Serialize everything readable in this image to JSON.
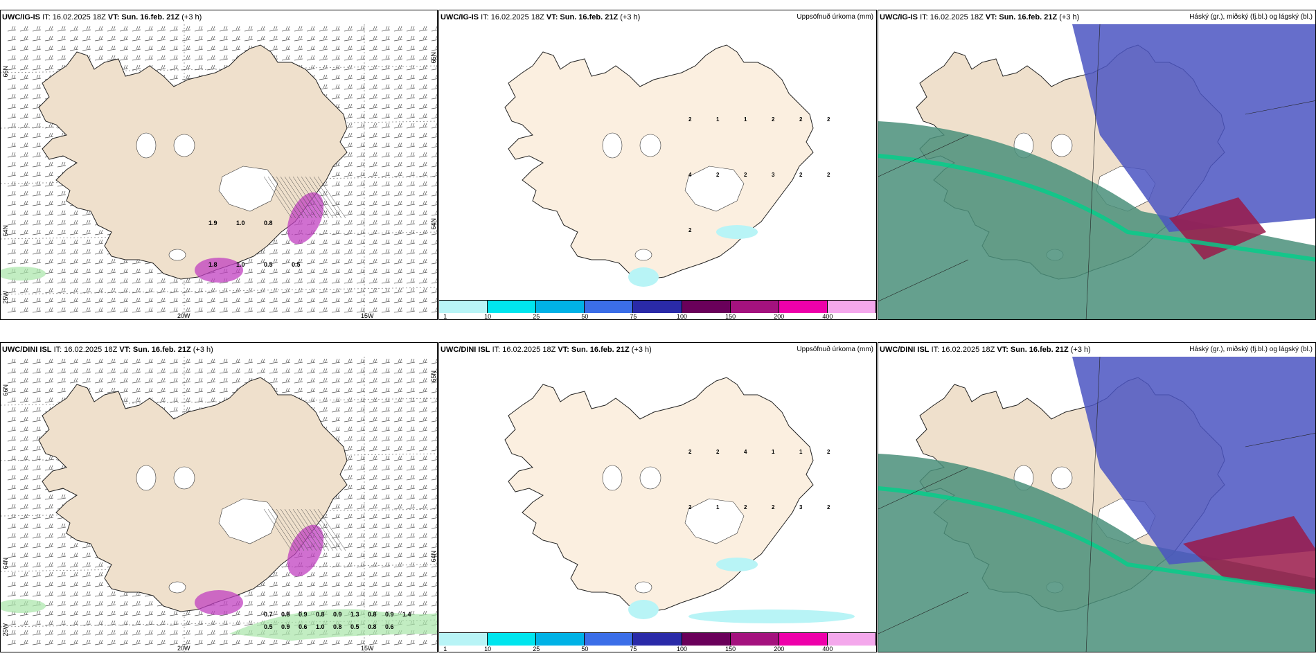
{
  "rows": [
    {
      "model": "UWC/IG-IS",
      "wind_panel": {
        "it_label": "IT: 16.02.2025 18Z",
        "vt_label": "VT: Sun. 16.feb. 21Z",
        "lead": "(+3 h)",
        "lat_labels": [
          "66N",
          "64N",
          "25W"
        ],
        "lon_labels": [
          "20W",
          "15W"
        ],
        "right_lat_labels": [
          "65N",
          "64N"
        ],
        "precip_labels": [
          "1.8",
          "1.0",
          "0.5",
          "0.5",
          "1.9",
          "1.0",
          "0.8"
        ]
      },
      "precip_panel": {
        "it_label": "IT: 16.02.2025 18Z",
        "vt_label": "VT: Sun. 16.feb. 21Z",
        "lead": "(+3 h)",
        "title": "Uppsöfnuð úrkoma (mm)",
        "values": [
          "2",
          "1",
          "1",
          "2",
          "2",
          "2",
          "4",
          "2",
          "2",
          "3",
          "2",
          "2",
          "2"
        ]
      },
      "cloud_panel": {
        "it_label": "IT: 16.02.2025 18Z",
        "vt_label": "VT: Sun. 16.feb. 21Z",
        "lead": "(+3 h)",
        "title": "Háský (gr.), miðský (fj.bl.) og lágský (bl.)"
      }
    },
    {
      "model": "UWC/DINI ISL",
      "wind_panel": {
        "it_label": "IT: 16.02.2025 18Z",
        "vt_label": "VT: Sun. 16.feb. 21Z",
        "lead": "(+3 h)",
        "lat_labels": [
          "66N",
          "64N",
          "25W"
        ],
        "lon_labels": [
          "20W",
          "15W"
        ],
        "right_lat_labels": [
          "65N",
          "64N"
        ],
        "precip_labels": [
          "0.7",
          "0.8",
          "0.9",
          "0.8",
          "0.9",
          "1.3",
          "0.8",
          "0.9",
          "1.4",
          "0.5",
          "0.9",
          "0.6",
          "1.0",
          "0.8",
          "0.5",
          "0.8",
          "0.6"
        ]
      },
      "precip_panel": {
        "it_label": "IT: 16.02.2025 18Z",
        "vt_label": "VT: Sun. 16.feb. 21Z",
        "lead": "(+3 h)",
        "title": "Uppsöfnuð úrkoma (mm)",
        "values": [
          "2",
          "2",
          "4",
          "1",
          "1",
          "2",
          "2",
          "1",
          "2",
          "2",
          "3",
          "2"
        ]
      },
      "cloud_panel": {
        "it_label": "IT: 16.02.2025 18Z",
        "vt_label": "VT: Sun. 16.feb. 21Z",
        "lead": "(+3 h)",
        "title": "Háský (gr.), miðský (fj.bl.) og lágský (bl.)"
      }
    }
  ],
  "colorbar": {
    "labels": [
      "1",
      "10",
      "25",
      "50",
      "75",
      "100",
      "150",
      "200",
      "400"
    ],
    "colors": [
      "#b8f4f6",
      "#00e5ee",
      "#00b2e6",
      "#3b6ee8",
      "#2a2aa8",
      "#6a005a",
      "#a4127e",
      "#ee00aa",
      "#f4a8ec"
    ]
  },
  "colors": {
    "land": "#efe0cc",
    "land_precip": "#fbefe0",
    "sea": "#ffffff",
    "high_cloud": "#4a8f7a",
    "mid_cloud": "#4b55c2",
    "low_cloud": "#9a1a4a",
    "precip_green": "#a8e6a8",
    "precip_purple": "#c040c0"
  }
}
